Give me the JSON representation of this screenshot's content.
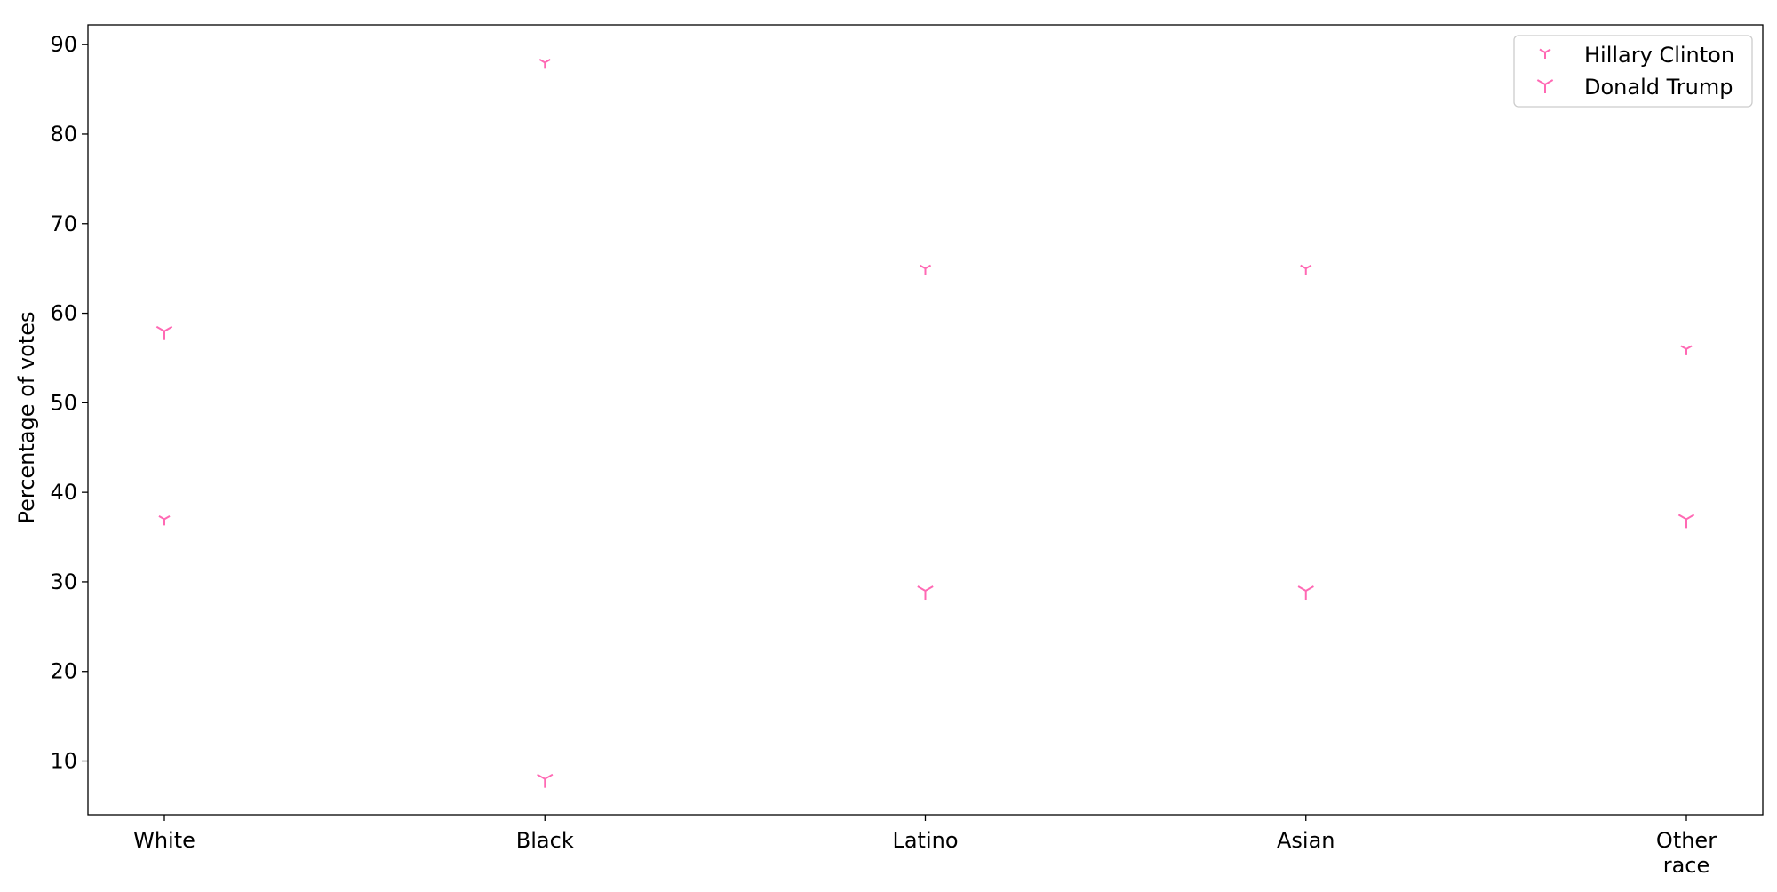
{
  "chart_data": {
    "type": "scatter",
    "title": "",
    "xlabel": "",
    "ylabel": "Percentage of votes",
    "categories": [
      "White",
      "Black",
      "Latino",
      "Asian",
      "Other race"
    ],
    "category_labels": [
      [
        "White"
      ],
      [
        "Black"
      ],
      [
        "Latino"
      ],
      [
        "Asian"
      ],
      [
        "Other",
        "race"
      ]
    ],
    "series": [
      {
        "name": "Hillary Clinton",
        "values": [
          37,
          88,
          65,
          65,
          56
        ],
        "color": "#ff69b4",
        "marker": "tri-down",
        "size": "small"
      },
      {
        "name": "Donald Trump",
        "values": [
          58,
          8,
          29,
          29,
          37
        ],
        "color": "#ff69b4",
        "marker": "tri-down",
        "size": "large"
      }
    ],
    "ylim": [
      4.0,
      92.2
    ],
    "yticks": [
      10,
      20,
      30,
      40,
      50,
      60,
      70,
      80,
      90
    ],
    "grid": false,
    "legend": "top-right"
  }
}
